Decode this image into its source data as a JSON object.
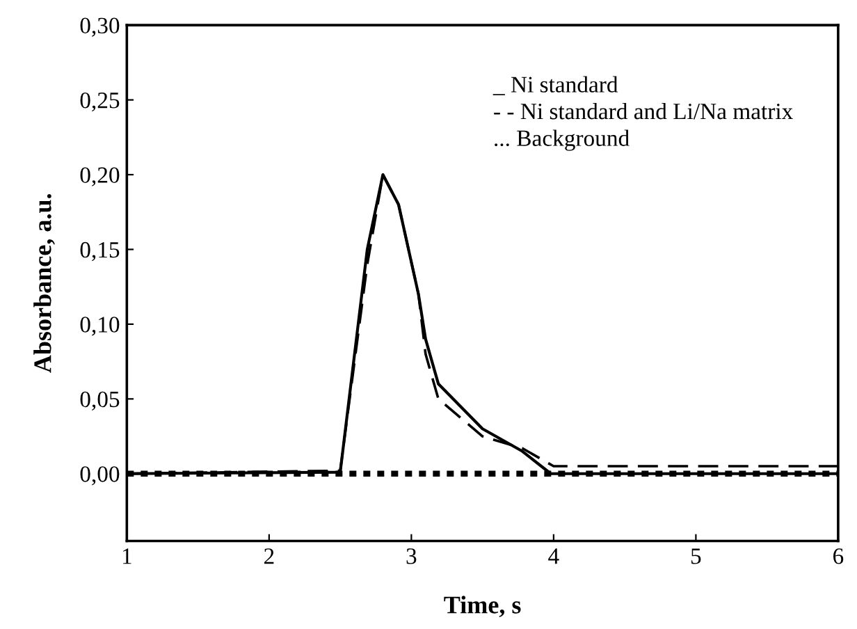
{
  "chart_data": {
    "type": "line",
    "xlabel": "Time, s",
    "ylabel": "Absorbance, a.u.",
    "xlim": [
      1,
      6
    ],
    "xticks": [
      1,
      2,
      3,
      4,
      5,
      6
    ],
    "ylim": [
      -0.045,
      0.3
    ],
    "yticks": [
      {
        "value": 0,
        "label": "0,00"
      },
      {
        "value": 0.05,
        "label": "0,05"
      },
      {
        "value": 0.1,
        "label": "0,10"
      },
      {
        "value": 0.15,
        "label": "0,15"
      },
      {
        "value": 0.2,
        "label": "0,20"
      },
      {
        "value": 0.25,
        "label": "0,25"
      },
      {
        "value": 0.3,
        "label": "0,30"
      }
    ],
    "grid": false,
    "legend": false,
    "marker": "none",
    "series": [
      {
        "color": "#000000",
        "line_style": "solid",
        "x": [
          1,
          2.5,
          2.69,
          2.8,
          2.91,
          3.05,
          3.1,
          3.19,
          3.5,
          3.78,
          3.98,
          6
        ],
        "values": [
          0,
          0.001,
          0.15,
          0.2,
          0.18,
          0.12,
          0.09,
          0.06,
          0.03,
          0.015,
          0,
          0
        ]
      },
      {
        "color": "#000000",
        "line_style": "dashed",
        "x": [
          1,
          2.5,
          2.69,
          2.8,
          2.91,
          3.05,
          3.1,
          3.19,
          3.5,
          3.78,
          4,
          6
        ],
        "values": [
          0,
          0.002,
          0.14,
          0.2,
          0.18,
          0.12,
          0.08,
          0.05,
          0.025,
          0.017,
          0.005,
          0.005
        ]
      },
      {
        "color": "#000000",
        "line_style": "dotted",
        "x": [
          1,
          6
        ],
        "values": [
          0,
          0
        ]
      }
    ],
    "annotations": [
      "_ Ni standard",
      "- - Ni standard and Li/Na matrix",
      "... Background"
    ]
  }
}
